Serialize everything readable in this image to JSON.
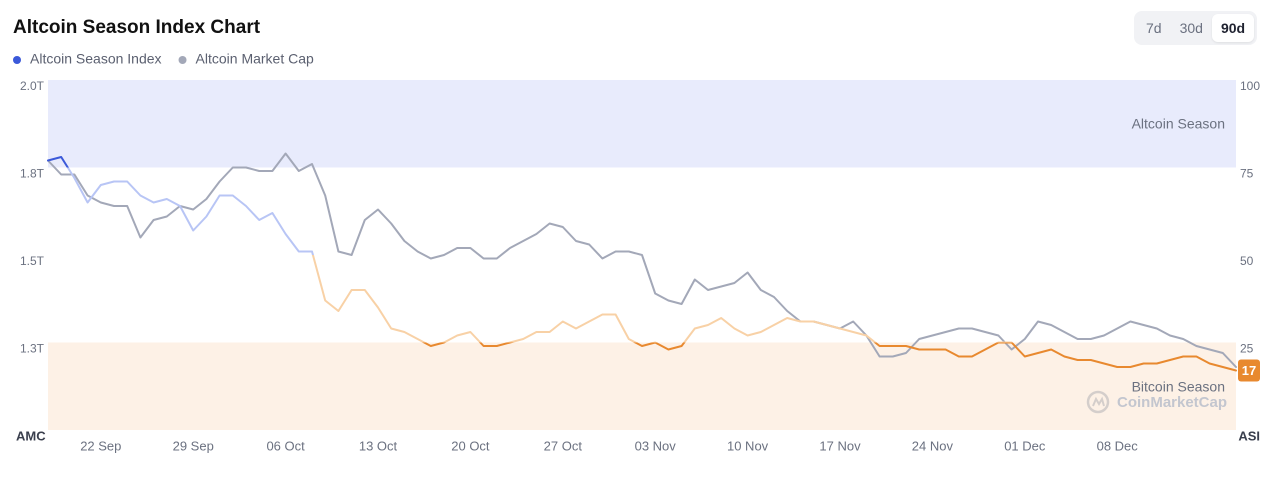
{
  "chart_data": {
    "type": "line",
    "title": "Altcoin Season Index Chart",
    "y_label": "AMC",
    "y2_label": "ASI",
    "watermark": "CoinMarketCap",
    "categories": [
      null,
      null,
      null,
      null,
      "22 Sep",
      null,
      null,
      null,
      null,
      null,
      null,
      "29 Sep",
      null,
      null,
      null,
      null,
      null,
      null,
      "06 Oct",
      null,
      null,
      null,
      null,
      null,
      null,
      "13 Oct",
      null,
      null,
      null,
      null,
      null,
      null,
      "20 Oct",
      null,
      null,
      null,
      null,
      null,
      null,
      "27 Oct",
      null,
      null,
      null,
      null,
      null,
      null,
      "03 Nov",
      null,
      null,
      null,
      null,
      null,
      null,
      "10 Nov",
      null,
      null,
      null,
      null,
      null,
      null,
      "17 Nov",
      null,
      null,
      null,
      null,
      null,
      null,
      "24 Nov",
      null,
      null,
      null,
      null,
      null,
      null,
      "01 Dec",
      null,
      null,
      null,
      null,
      null,
      null,
      "08 Dec",
      null,
      null,
      null,
      null,
      null,
      null,
      null,
      null,
      null
    ],
    "series": [
      {
        "name": "Altcoin Season Index",
        "color": "#3b59d9",
        "axis": "y2",
        "zone_colors": [
          {
            "from": 75,
            "color": "#3b59d9"
          },
          {
            "from": 50,
            "color": "#b8c5f5"
          },
          {
            "from": 25,
            "color": "#f8d1a6"
          },
          {
            "from": 0,
            "color": "#e8892f"
          }
        ],
        "values": [
          77,
          78,
          72,
          65,
          70,
          71,
          71,
          67,
          65,
          66,
          64,
          57,
          61,
          67,
          67,
          64,
          60,
          62,
          56,
          51,
          51,
          37,
          34,
          40,
          40,
          35,
          29,
          28,
          26,
          24,
          25,
          27,
          28,
          24,
          24,
          25,
          26,
          28,
          28,
          31,
          29,
          31,
          33,
          33,
          26,
          24,
          25,
          23,
          24,
          29,
          30,
          32,
          29,
          27,
          28,
          30,
          32,
          31,
          31,
          30,
          29,
          28,
          27,
          24,
          24,
          24,
          23,
          23,
          23,
          21,
          21,
          23,
          25,
          25,
          21,
          22,
          23,
          21,
          20,
          20,
          19,
          18,
          18,
          19,
          19,
          20,
          21,
          21,
          19,
          18,
          17
        ]
      },
      {
        "name": "Altcoin Market Cap",
        "color": "#a3a8b8",
        "values": [
          1.77,
          1.73,
          1.73,
          1.67,
          1.65,
          1.64,
          1.64,
          1.55,
          1.6,
          1.61,
          1.64,
          1.63,
          1.66,
          1.71,
          1.75,
          1.75,
          1.74,
          1.74,
          1.79,
          1.74,
          1.76,
          1.67,
          1.51,
          1.5,
          1.6,
          1.63,
          1.59,
          1.54,
          1.51,
          1.49,
          1.5,
          1.52,
          1.52,
          1.49,
          1.49,
          1.52,
          1.54,
          1.56,
          1.59,
          1.58,
          1.54,
          1.53,
          1.49,
          1.51,
          1.51,
          1.5,
          1.39,
          1.37,
          1.36,
          1.43,
          1.4,
          1.41,
          1.42,
          1.45,
          1.4,
          1.38,
          1.34,
          1.31,
          1.31,
          1.3,
          1.29,
          1.31,
          1.27,
          1.21,
          1.21,
          1.22,
          1.26,
          1.27,
          1.28,
          1.29,
          1.29,
          1.28,
          1.27,
          1.23,
          1.26,
          1.31,
          1.3,
          1.28,
          1.26,
          1.26,
          1.27,
          1.29,
          1.31,
          1.3,
          1.29,
          1.27,
          1.26,
          1.24,
          1.23,
          1.22,
          1.18
        ]
      }
    ],
    "bands": [
      {
        "label": "Altcoin Season",
        "from": 75,
        "to": 100,
        "color": "#e8ebfc"
      },
      {
        "label": "Bitcoin Season",
        "from": 0,
        "to": 25,
        "color": "#fdf1e6"
      }
    ],
    "ylim": [
      1,
      2
    ],
    "yticks": [
      {
        "value": 2,
        "label": "2.0T"
      },
      {
        "value": 1.75,
        "label": "1.8T"
      },
      {
        "value": 1.5,
        "label": "1.5T"
      },
      {
        "value": 1.25,
        "label": "1.3T"
      }
    ],
    "y2lim": [
      0,
      100
    ],
    "y2ticks": [
      100,
      75,
      50,
      25
    ],
    "grid": false,
    "legend": "top-left"
  },
  "controls": {
    "ranges": [
      "7d",
      "30d",
      "90d"
    ],
    "active": 2
  }
}
